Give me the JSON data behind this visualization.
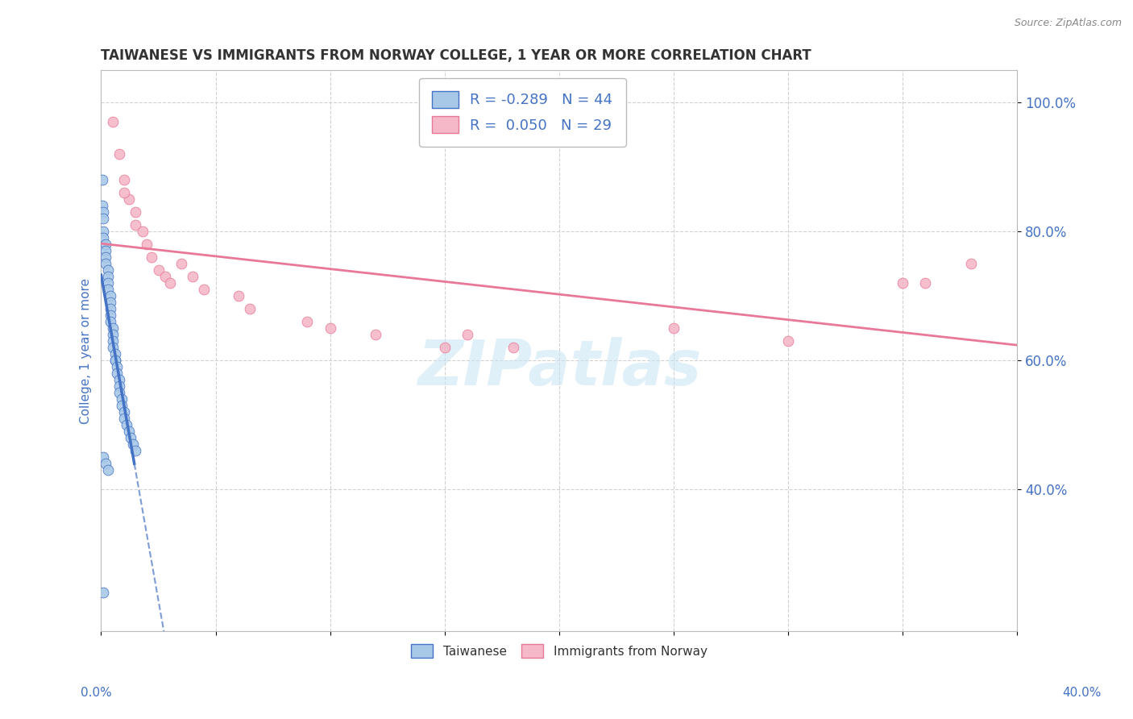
{
  "title": "TAIWANESE VS IMMIGRANTS FROM NORWAY COLLEGE, 1 YEAR OR MORE CORRELATION CHART",
  "source": "Source: ZipAtlas.com",
  "ylabel": "College, 1 year or more",
  "legend_label1": "Taiwanese",
  "legend_label2": "Immigrants from Norway",
  "R1": -0.289,
  "N1": 44,
  "R2": 0.05,
  "N2": 29,
  "watermark": "ZIPatlas",
  "color_taiwanese": "#a8c8e8",
  "color_norwegian": "#f4b8c8",
  "color_trend1": "#4472c4",
  "color_trend2_line": "#e87898",
  "background_color": "#ffffff",
  "grid_color": "#cccccc",
  "tick_label_color": "#4472c4",
  "xlim": [
    0.0,
    0.4
  ],
  "ylim": [
    0.18,
    1.05
  ],
  "yticks": [
    0.4,
    0.6,
    0.8,
    1.0
  ],
  "ytick_labels": [
    "40.0%",
    "60.0%",
    "80.0%",
    "100.0%"
  ],
  "scatter_taiwanese_x": [
    0.0005,
    0.0005,
    0.001,
    0.001,
    0.001,
    0.001,
    0.002,
    0.002,
    0.002,
    0.002,
    0.003,
    0.003,
    0.003,
    0.003,
    0.004,
    0.004,
    0.004,
    0.004,
    0.004,
    0.005,
    0.005,
    0.005,
    0.005,
    0.006,
    0.006,
    0.006,
    0.007,
    0.007,
    0.008,
    0.008,
    0.008,
    0.009,
    0.009,
    0.01,
    0.01,
    0.011,
    0.012,
    0.013,
    0.014,
    0.015,
    0.001,
    0.002,
    0.003,
    0.001
  ],
  "scatter_taiwanese_y": [
    0.88,
    0.84,
    0.83,
    0.82,
    0.8,
    0.79,
    0.78,
    0.77,
    0.76,
    0.75,
    0.74,
    0.73,
    0.72,
    0.71,
    0.7,
    0.69,
    0.68,
    0.67,
    0.66,
    0.65,
    0.64,
    0.63,
    0.62,
    0.61,
    0.6,
    0.6,
    0.59,
    0.58,
    0.57,
    0.56,
    0.55,
    0.54,
    0.53,
    0.52,
    0.51,
    0.5,
    0.49,
    0.48,
    0.47,
    0.46,
    0.45,
    0.44,
    0.43,
    0.24
  ],
  "scatter_norwegian_x": [
    0.005,
    0.008,
    0.01,
    0.012,
    0.015,
    0.015,
    0.018,
    0.02,
    0.022,
    0.025,
    0.028,
    0.03,
    0.035,
    0.04,
    0.045,
    0.06,
    0.065,
    0.09,
    0.1,
    0.12,
    0.15,
    0.16,
    0.18,
    0.25,
    0.3,
    0.35,
    0.36,
    0.38,
    0.01
  ],
  "scatter_norwegian_y": [
    0.97,
    0.92,
    0.88,
    0.85,
    0.83,
    0.81,
    0.8,
    0.78,
    0.76,
    0.74,
    0.73,
    0.72,
    0.75,
    0.73,
    0.71,
    0.7,
    0.68,
    0.66,
    0.65,
    0.64,
    0.62,
    0.64,
    0.62,
    0.65,
    0.63,
    0.72,
    0.72,
    0.75,
    0.86
  ]
}
